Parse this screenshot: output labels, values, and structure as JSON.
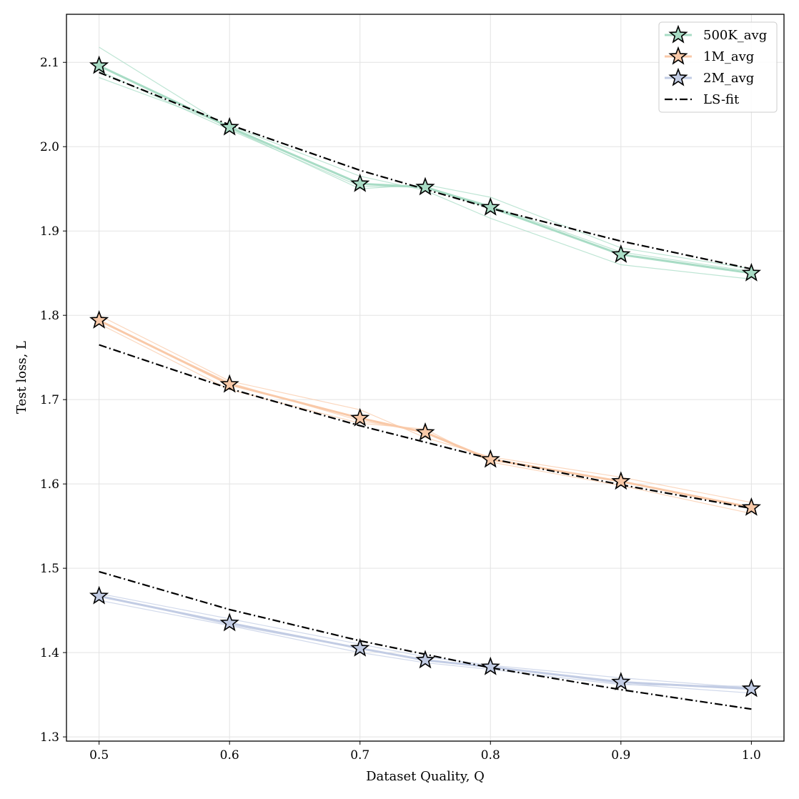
{
  "chart_data": {
    "type": "line",
    "title": "",
    "xlabel": "Dataset Quality, Q",
    "ylabel": "Test loss, L",
    "xlim": [
      0.475,
      1.025
    ],
    "ylim": [
      1.295,
      2.157
    ],
    "xticks": [
      0.5,
      0.6,
      0.7,
      0.8,
      0.9,
      1.0
    ],
    "xtick_labels": [
      "0.5",
      "0.6",
      "0.7",
      "0.8",
      "0.9",
      "1.0"
    ],
    "yticks": [
      1.3,
      1.4,
      1.5,
      1.6,
      1.7,
      1.8,
      1.9,
      2.0,
      2.1
    ],
    "ytick_labels": [
      "1.3",
      "1.4",
      "1.5",
      "1.6",
      "1.7",
      "1.8",
      "1.9",
      "2.0",
      "2.1"
    ],
    "grid": true,
    "legend_position": "top-right",
    "x": [
      0.5,
      0.6,
      0.7,
      0.75,
      0.8,
      0.9,
      1.0
    ],
    "series": [
      {
        "name": "500K_avg",
        "color": "#a8dcc5",
        "values": [
          2.096,
          2.023,
          1.956,
          1.952,
          1.928,
          1.872,
          1.85
        ],
        "runs": [
          [
            2.118,
            2.022,
            1.95,
            1.955,
            1.94,
            1.88,
            1.855
          ],
          [
            2.082,
            2.025,
            1.965,
            1.948,
            1.915,
            1.86,
            1.843
          ],
          [
            2.09,
            2.02,
            1.953,
            1.952,
            1.93,
            1.875,
            1.852
          ]
        ]
      },
      {
        "name": "1M_avg",
        "color": "#f9c9a8",
        "values": [
          1.794,
          1.718,
          1.678,
          1.661,
          1.629,
          1.603,
          1.572
        ],
        "runs": [
          [
            1.8,
            1.722,
            1.688,
            1.655,
            1.632,
            1.608,
            1.578
          ],
          [
            1.79,
            1.712,
            1.672,
            1.665,
            1.626,
            1.598,
            1.565
          ],
          [
            1.793,
            1.72,
            1.675,
            1.662,
            1.63,
            1.603,
            1.573
          ]
        ]
      },
      {
        "name": "2M_avg",
        "color": "#c2cce4",
        "values": [
          1.467,
          1.435,
          1.405,
          1.391,
          1.383,
          1.365,
          1.357
        ],
        "runs": [
          [
            1.47,
            1.44,
            1.41,
            1.395,
            1.385,
            1.37,
            1.358
          ],
          [
            1.462,
            1.432,
            1.4,
            1.388,
            1.38,
            1.362,
            1.36
          ],
          [
            1.468,
            1.433,
            1.405,
            1.39,
            1.384,
            1.363,
            1.352
          ]
        ]
      }
    ],
    "fits": [
      {
        "name": "LS-fit",
        "x": [
          0.5,
          0.6,
          0.7,
          0.8,
          0.9,
          1.0
        ],
        "values": [
          2.088,
          2.026,
          1.972,
          1.927,
          1.888,
          1.855
        ]
      },
      {
        "name": "LS-fit",
        "x": [
          0.5,
          0.6,
          0.7,
          0.8,
          0.9,
          1.0
        ],
        "values": [
          1.765,
          1.713,
          1.669,
          1.63,
          1.599,
          1.571
        ]
      },
      {
        "name": "LS-fit",
        "x": [
          0.5,
          0.6,
          0.7,
          0.8,
          0.9,
          1.0
        ],
        "values": [
          1.496,
          1.451,
          1.414,
          1.382,
          1.356,
          1.333
        ]
      }
    ],
    "legend": [
      {
        "label": "500K_avg",
        "color": "#a8dcc5",
        "kind": "star"
      },
      {
        "label": "1M_avg",
        "color": "#f9c9a8",
        "kind": "star"
      },
      {
        "label": "2M_avg",
        "color": "#c2cce4",
        "kind": "star"
      },
      {
        "label": "LS-fit",
        "color": "#000000",
        "kind": "dashdot"
      }
    ]
  }
}
